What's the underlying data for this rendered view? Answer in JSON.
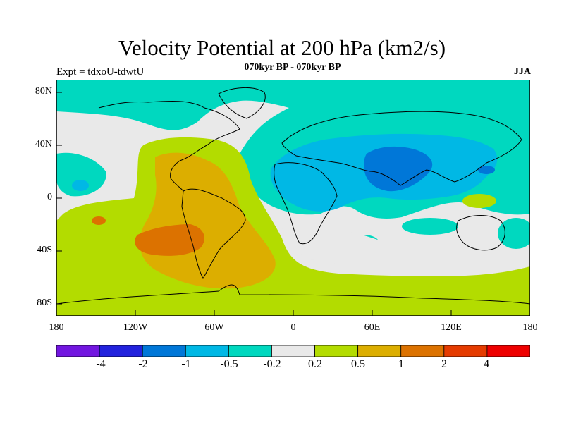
{
  "title": "Velocity Potential at 200 hPa (km2/s)",
  "subtitle": "070kyr BP - 070kyr BP",
  "experiment": "Expt = tdxoU-tdwtU",
  "season": "JJA",
  "y_ticks": [
    "80N",
    "40N",
    "0",
    "40S",
    "80S"
  ],
  "x_ticks": [
    "180",
    "120W",
    "60W",
    "0",
    "60E",
    "120E",
    "180"
  ],
  "colorbar": {
    "colors": [
      "#7216e0",
      "#2222dd",
      "#0077d8",
      "#00b8e5",
      "#00d8bf",
      "#e9e9e9",
      "#b3dc00",
      "#dcae00",
      "#dc7200",
      "#e53b00",
      "#ee0000"
    ],
    "labels": [
      "-4",
      "-2",
      "-1",
      "-0.5",
      "-0.2",
      "0.2",
      "0.5",
      "1",
      "2",
      "4"
    ]
  },
  "colors": {
    "c_neg_05": "#00b8e5",
    "c_neg_02": "#00d8bf",
    "c_neutral": "#e9e9e9",
    "c_pos_02": "#b3dc00",
    "c_pos_05": "#dcae00",
    "c_pos_1": "#dc7200"
  }
}
